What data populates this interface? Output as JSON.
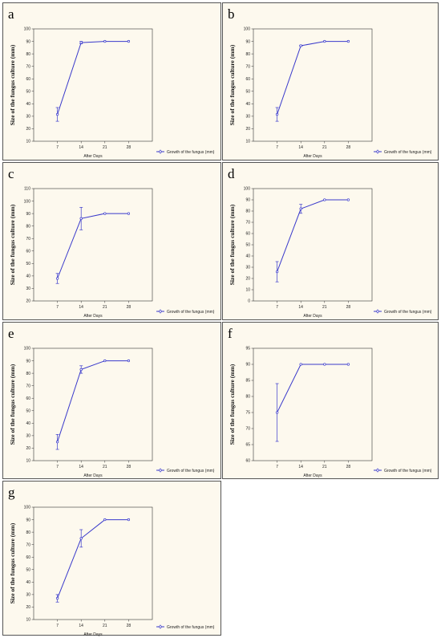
{
  "chart_data": [
    {
      "panel": "a",
      "type": "line",
      "xlabel": "After Days",
      "ylabel": "Size of the fungus culture (mm)",
      "x": [
        7,
        14,
        21,
        28
      ],
      "ylim": [
        10,
        100
      ],
      "yticks": [
        10,
        20,
        30,
        40,
        50,
        60,
        70,
        80,
        90,
        100
      ],
      "series": [
        {
          "name": "Growth of the fungus (mm)",
          "values": [
            31.5,
            89,
            90,
            90
          ],
          "err_low": [
            26,
            88,
            90,
            90
          ],
          "err_high": [
            37,
            90,
            90,
            90
          ]
        }
      ],
      "legend": "bottom-right",
      "grid": false
    },
    {
      "panel": "b",
      "type": "line",
      "xlabel": "After Days",
      "ylabel": "Size of the fungus culture (mm)",
      "x": [
        7,
        14,
        21,
        28
      ],
      "ylim": [
        10,
        100
      ],
      "yticks": [
        10,
        20,
        30,
        40,
        50,
        60,
        70,
        80,
        90,
        100
      ],
      "series": [
        {
          "name": "Growth of the fungus (mm)",
          "values": [
            31.5,
            86.5,
            90,
            90
          ],
          "err_low": [
            26,
            86,
            90,
            90
          ],
          "err_high": [
            37,
            87,
            90,
            90
          ]
        }
      ],
      "legend": "bottom-right",
      "grid": false
    },
    {
      "panel": "c",
      "type": "line",
      "xlabel": "After Days",
      "ylabel": "Size of the fungus culture (mm)",
      "x": [
        7,
        14,
        21,
        28
      ],
      "ylim": [
        20,
        110
      ],
      "yticks": [
        20,
        30,
        40,
        50,
        60,
        70,
        80,
        90,
        100,
        110
      ],
      "series": [
        {
          "name": "Growth of the fungus (mm)",
          "values": [
            38,
            86,
            90,
            90
          ],
          "err_low": [
            34,
            77,
            90,
            90
          ],
          "err_high": [
            42,
            95,
            90,
            90
          ]
        }
      ],
      "legend": "bottom-right",
      "grid": false
    },
    {
      "panel": "d",
      "type": "line",
      "xlabel": "After Days",
      "ylabel": "Size of the fungus culture (mm)",
      "x": [
        7,
        14,
        21,
        28
      ],
      "ylim": [
        0,
        100
      ],
      "yticks": [
        0,
        10,
        20,
        30,
        40,
        50,
        60,
        70,
        80,
        90,
        100
      ],
      "series": [
        {
          "name": "Growth of the fungus (mm)",
          "values": [
            26,
            82,
            90,
            90
          ],
          "err_low": [
            17,
            78,
            90,
            90
          ],
          "err_high": [
            35,
            86,
            90,
            90
          ]
        }
      ],
      "legend": "bottom-right",
      "grid": false
    },
    {
      "panel": "e",
      "type": "line",
      "xlabel": "After Days",
      "ylabel": "Size of the fungus culture (mm)",
      "x": [
        7,
        14,
        21,
        28
      ],
      "ylim": [
        10,
        100
      ],
      "yticks": [
        10,
        20,
        30,
        40,
        50,
        60,
        70,
        80,
        90,
        100
      ],
      "series": [
        {
          "name": "Growth of the fungus (mm)",
          "values": [
            25,
            83,
            90,
            90
          ],
          "err_low": [
            19,
            80,
            90,
            90
          ],
          "err_high": [
            31,
            86,
            90,
            90
          ]
        }
      ],
      "legend": "bottom-right",
      "grid": false
    },
    {
      "panel": "f",
      "type": "line",
      "xlabel": "After Days",
      "ylabel": "Size of the fungus culture (mm)",
      "x": [
        7,
        14,
        21,
        28
      ],
      "ylim": [
        60,
        95
      ],
      "yticks": [
        60,
        65,
        70,
        75,
        80,
        85,
        90,
        95
      ],
      "series": [
        {
          "name": "Growth of the fungus (mm)",
          "values": [
            75,
            90,
            90,
            90
          ],
          "err_low": [
            66,
            90,
            90,
            90
          ],
          "err_high": [
            84,
            90,
            90,
            90
          ]
        }
      ],
      "legend": "bottom-right",
      "grid": false
    },
    {
      "panel": "g",
      "type": "line",
      "xlabel": "After Days",
      "ylabel": "Size of the fungus culture (mm)",
      "x": [
        7,
        14,
        21,
        28
      ],
      "ylim": [
        10,
        100
      ],
      "yticks": [
        10,
        20,
        30,
        40,
        50,
        60,
        70,
        80,
        90,
        100
      ],
      "series": [
        {
          "name": "Growth of the fungus (mm)",
          "values": [
            27,
            75,
            90,
            90
          ],
          "err_low": [
            24,
            68,
            90,
            90
          ],
          "err_high": [
            30,
            82,
            90,
            90
          ]
        }
      ],
      "legend": "bottom-right",
      "grid": false
    }
  ],
  "colors": {
    "series": "#3a3acb",
    "axis": "#333333",
    "panel_bg": "#fdf9ee"
  }
}
